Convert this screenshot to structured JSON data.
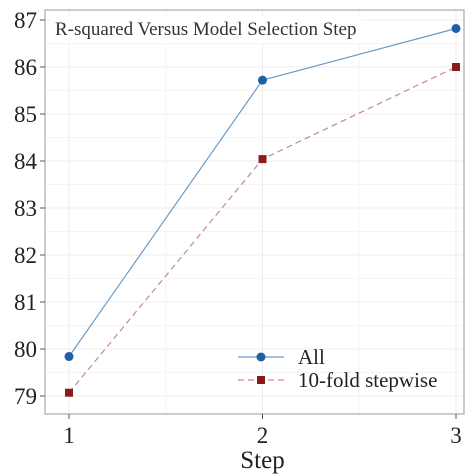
{
  "chart_data": {
    "type": "line",
    "title": "R-squared Versus Model Selection Step",
    "xlabel": "Step",
    "ylabel": "",
    "x": [
      1,
      2,
      3
    ],
    "xticks": [
      "1",
      "2",
      "3"
    ],
    "xlim": [
      0.85,
      3.0
    ],
    "ylim": [
      78.7,
      87.2
    ],
    "yticks": [
      "79",
      "80",
      "81",
      "82",
      "83",
      "84",
      "85",
      "86",
      "87"
    ],
    "grid": true,
    "legend_position": "bottom-right",
    "series": [
      {
        "name": "All",
        "values": [
          79.84,
          85.72,
          86.82
        ],
        "color": "#1f5fa6",
        "line_color": "#6d9bc4",
        "marker": "circle",
        "dash": "solid"
      },
      {
        "name": "10-fold stepwise",
        "values": [
          79.07,
          84.04,
          86.0
        ],
        "color": "#8b1a1a",
        "line_color": "#c48a8a",
        "marker": "square",
        "dash": "dashed"
      }
    ]
  }
}
